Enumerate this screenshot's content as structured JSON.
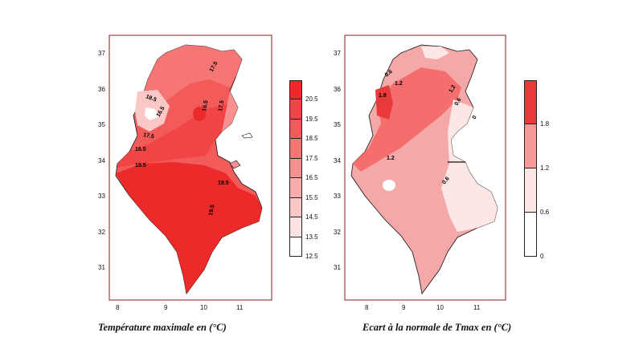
{
  "maps": {
    "left": {
      "caption": "Température maximale   en  (°C)",
      "x_ticks": [
        "8",
        "9",
        "10",
        "11"
      ],
      "y_ticks": [
        "37",
        "36",
        "35",
        "34",
        "33",
        "32",
        "31"
      ],
      "contour_labels": [
        "17.5",
        "18.5",
        "16.5",
        "16.5",
        "17.5",
        "17.5",
        "16.5",
        "19.5",
        "19.5",
        "19.5"
      ],
      "legend": [
        "20.5",
        "19.5",
        "18.5",
        "17.5",
        "16.5",
        "15.5",
        "14.5",
        "13.5",
        "12.5"
      ],
      "colors": [
        "#ed2a2a",
        "#f14444",
        "#f35b5b",
        "#f67575",
        "#f89090",
        "#faabab",
        "#fcc7c7",
        "#fde2e2",
        "#ffffff"
      ]
    },
    "right": {
      "caption": "Ecart à la normale de Tmax en  (°C)",
      "x_ticks": [
        "8",
        "9",
        "10",
        "11"
      ],
      "y_ticks": [
        "37",
        "36",
        "35",
        "34",
        "33",
        "32",
        "31"
      ],
      "contour_labels": [
        "0.6",
        "1.2",
        "1.8",
        "1.2",
        "0.6",
        "0",
        "1.2",
        "0.6"
      ],
      "legend": [
        "1.8",
        "1.2",
        "0.6",
        "0"
      ],
      "colors": [
        "#e83a3a",
        "#f59a9a",
        "#fde6e6",
        "#ffffff"
      ]
    }
  }
}
